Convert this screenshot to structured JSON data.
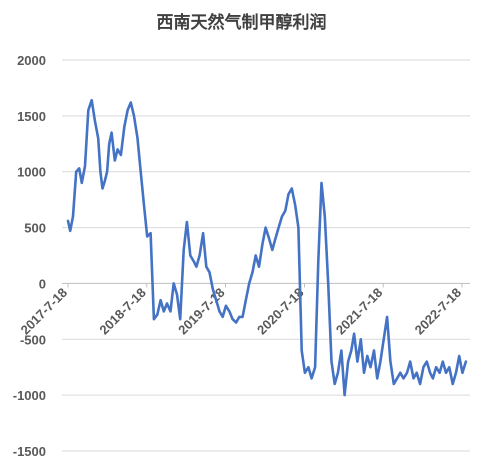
{
  "chart_data": {
    "type": "line",
    "title": "西南天然气制甲醇利润",
    "xlabel": "",
    "ylabel": "",
    "ylim": [
      -1500,
      2000
    ],
    "y_ticks": [
      "2000",
      "1500",
      "1000",
      "500",
      "0",
      "-500",
      "-1000",
      "-1500"
    ],
    "x_ticks": [
      "2017-7-18",
      "2018-7-18",
      "2019-7-18",
      "2020-7-18",
      "2021-7-18",
      "2022-7-18"
    ],
    "grid": true,
    "legend": "none",
    "series": [
      {
        "color": "#4472c4",
        "x": [
          "2017-07-18",
          "2017-07-28",
          "2017-08-10",
          "2017-08-25",
          "2017-09-08",
          "2017-09-20",
          "2017-10-05",
          "2017-10-20",
          "2017-11-05",
          "2017-11-20",
          "2017-12-05",
          "2017-12-15",
          "2017-12-25",
          "2018-01-05",
          "2018-01-15",
          "2018-01-25",
          "2018-02-05",
          "2018-02-20",
          "2018-03-05",
          "2018-03-20",
          "2018-04-05",
          "2018-04-20",
          "2018-05-05",
          "2018-05-20",
          "2018-06-05",
          "2018-06-20",
          "2018-07-05",
          "2018-07-20",
          "2018-08-05",
          "2018-08-20",
          "2018-09-05",
          "2018-09-20",
          "2018-10-05",
          "2018-10-20",
          "2018-11-05",
          "2018-11-20",
          "2018-12-05",
          "2018-12-20",
          "2019-01-05",
          "2019-01-20",
          "2019-02-05",
          "2019-02-20",
          "2019-03-05",
          "2019-03-20",
          "2019-04-05",
          "2019-04-20",
          "2019-05-05",
          "2019-05-20",
          "2019-06-05",
          "2019-06-20",
          "2019-07-05",
          "2019-07-20",
          "2019-08-05",
          "2019-08-20",
          "2019-09-05",
          "2019-09-20",
          "2019-10-05",
          "2019-10-20",
          "2019-11-05",
          "2019-11-20",
          "2019-12-05",
          "2019-12-20",
          "2020-01-05",
          "2020-01-20",
          "2020-02-05",
          "2020-02-20",
          "2020-03-05",
          "2020-03-20",
          "2020-04-05",
          "2020-04-20",
          "2020-05-05",
          "2020-05-20",
          "2020-06-05",
          "2020-06-20",
          "2020-07-05",
          "2020-07-20",
          "2020-08-05",
          "2020-08-20",
          "2020-09-05",
          "2020-09-20",
          "2020-10-05",
          "2020-10-20",
          "2020-11-05",
          "2020-11-20",
          "2020-12-05",
          "2020-12-20",
          "2021-01-05",
          "2021-01-20",
          "2021-02-05",
          "2021-02-20",
          "2021-03-05",
          "2021-03-20",
          "2021-04-05",
          "2021-04-20",
          "2021-05-05",
          "2021-05-20",
          "2021-06-05",
          "2021-06-20",
          "2021-07-05",
          "2021-07-20",
          "2021-08-05",
          "2021-08-20",
          "2021-09-05",
          "2021-09-20",
          "2021-10-05",
          "2021-10-20",
          "2021-11-05",
          "2021-11-20",
          "2021-12-05",
          "2021-12-20",
          "2022-01-05",
          "2022-01-20",
          "2022-02-05",
          "2022-02-20",
          "2022-03-05",
          "2022-03-20",
          "2022-04-05",
          "2022-04-20",
          "2022-05-05",
          "2022-05-20",
          "2022-06-05",
          "2022-06-20",
          "2022-07-05",
          "2022-07-20",
          "2022-08-05"
        ],
        "values": [
          560,
          470,
          600,
          1000,
          1030,
          900,
          1050,
          1550,
          1640,
          1450,
          1300,
          1000,
          850,
          920,
          1000,
          1250,
          1350,
          1100,
          1200,
          1150,
          1400,
          1550,
          1620,
          1500,
          1300,
          1000,
          700,
          420,
          450,
          -320,
          -280,
          -150,
          -250,
          -180,
          -250,
          0,
          -100,
          -320,
          300,
          550,
          250,
          200,
          150,
          250,
          450,
          150,
          100,
          -50,
          -150,
          -250,
          -300,
          -200,
          -250,
          -320,
          -350,
          -300,
          -300,
          -150,
          0,
          100,
          250,
          150,
          350,
          500,
          400,
          300,
          400,
          500,
          600,
          650,
          800,
          850,
          700,
          500,
          -600,
          -800,
          -750,
          -850,
          -750,
          200,
          900,
          600,
          0,
          -700,
          -900,
          -800,
          -600,
          -1000,
          -700,
          -600,
          -450,
          -700,
          -500,
          -800,
          -650,
          -750,
          -600,
          -850,
          -700,
          -500,
          -300,
          -700,
          -900,
          -850,
          -800,
          -850,
          -800,
          -700,
          -850,
          -800,
          -900,
          -750,
          -700,
          -800,
          -850,
          -750,
          -800,
          -700,
          -800,
          -750,
          -900,
          -800,
          -650,
          -800,
          -700
        ]
      }
    ]
  }
}
